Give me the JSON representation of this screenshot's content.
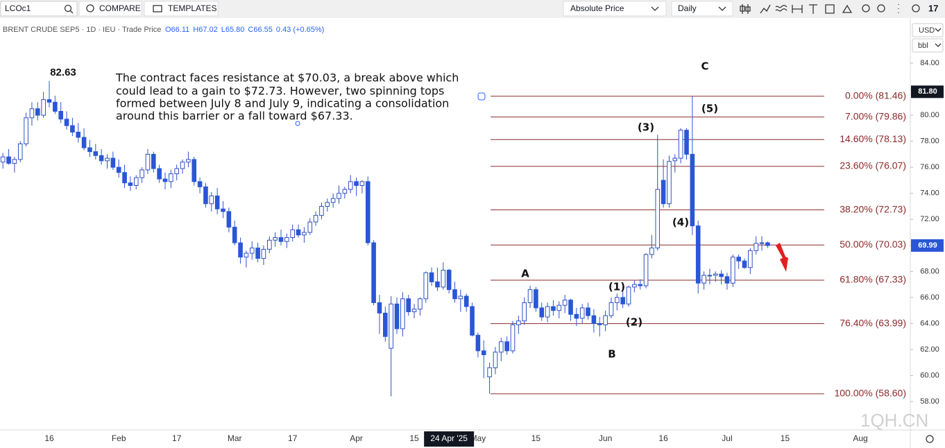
{
  "toolbar": {
    "symbol": "LCOc1",
    "compare": "COMPARE",
    "templates": "TEMPLATES",
    "price_mode": "Absolute Price",
    "interval": "Daily"
  },
  "watermark": "1QH.CN",
  "chart_data": {
    "type": "candlestick",
    "title": "BRENT CRUDE SEP5 · 1D · IEU · Trade Price",
    "ohlc_legend": [
      "O66.11",
      "H67.02",
      "L65.80",
      "C66.55",
      "0.43 (+0.65%)"
    ],
    "currency": "USD",
    "unit": "bbl",
    "up_color": "#2f4fc4",
    "down_color": "#2a56d6",
    "fib_color": "#8b2a2a",
    "ylim": [
      55.82,
      86.08
    ],
    "yticks": [
      {
        "value": 58,
        "label": "58.00"
      },
      {
        "value": 60,
        "label": "60.00"
      },
      {
        "value": 62,
        "label": "62.00"
      },
      {
        "value": 64,
        "label": "64.00"
      },
      {
        "value": 66,
        "label": "66.00"
      },
      {
        "value": 68,
        "label": "68.00"
      },
      {
        "value": 70,
        "label": "70.00"
      },
      {
        "value": 72,
        "label": "72.00"
      },
      {
        "value": 74,
        "label": "74.00"
      },
      {
        "value": 76,
        "label": "76.00"
      },
      {
        "value": 78,
        "label": "78.00"
      },
      {
        "value": 80,
        "label": "80.00"
      },
      {
        "value": 82,
        "label": "82.00"
      },
      {
        "value": 84,
        "label": "84.00"
      }
    ],
    "badges": [
      {
        "value": 81.8,
        "label": "81.80",
        "color": "#131722"
      },
      {
        "value": 69.99,
        "label": "69.99",
        "color": "#2a56d6"
      }
    ],
    "categories": [
      null,
      null,
      null,
      null,
      null,
      null,
      null,
      null,
      "16",
      null,
      null,
      null,
      null,
      null,
      null,
      null,
      null,
      null,
      null,
      null,
      "Feb",
      null,
      null,
      null,
      null,
      null,
      null,
      null,
      null,
      null,
      "17",
      null,
      null,
      null,
      null,
      null,
      null,
      null,
      null,
      null,
      "Mar",
      null,
      null,
      null,
      null,
      null,
      null,
      null,
      null,
      null,
      "17",
      null,
      null,
      null,
      null,
      null,
      null,
      null,
      null,
      null,
      null,
      "Apr",
      null,
      null,
      null,
      null,
      null,
      null,
      null,
      null,
      null,
      "15",
      null,
      null,
      null,
      null,
      null,
      "24 Apr '25",
      null,
      null,
      null,
      null,
      "May",
      null,
      null,
      null,
      null,
      null,
      null,
      null,
      null,
      null,
      "15",
      null,
      null,
      null,
      null,
      null,
      null,
      null,
      null,
      null,
      null,
      null,
      "Jun",
      null,
      null,
      null,
      null,
      null,
      null,
      null,
      null,
      null,
      "16",
      null,
      null,
      null,
      null,
      null,
      null,
      null,
      null,
      null,
      null,
      "Jul",
      null,
      null,
      null,
      null,
      null,
      null,
      null,
      null,
      null,
      "15",
      null,
      null,
      null,
      null,
      null,
      null,
      null,
      null,
      null,
      null,
      null,
      null,
      "Aug",
      null,
      null,
      null,
      null,
      null,
      null,
      null,
      null
    ],
    "open": [
      76.4,
      76.8,
      76.3,
      76.6,
      77.8,
      79.8,
      80.5,
      80.0,
      81.2,
      81.0,
      80.3,
      79.7,
      79.2,
      78.7,
      78.3,
      77.5,
      77.2,
      76.9,
      76.5,
      76.7,
      76.0,
      75.6,
      74.8,
      74.6,
      75.2,
      75.8,
      77.0,
      75.9,
      75.1,
      74.9,
      75.5,
      75.9,
      76.4,
      76.6,
      74.9,
      74.5,
      73.2,
      73.8,
      72.8,
      72.6,
      71.4,
      70.2,
      69.1,
      69.4,
      69.8,
      69.0,
      69.7,
      70.4,
      70.6,
      70.3,
      70.6,
      71.2,
      70.8,
      71.0,
      71.8,
      72.3,
      73.0,
      73.3,
      73.6,
      74.0,
      74.3,
      74.9,
      74.6,
      74.9,
      70.2,
      65.6,
      64.8,
      62.1,
      65.5,
      63.6,
      65.9,
      64.9,
      65.1,
      65.9,
      67.9,
      67.2,
      66.8,
      68.1,
      66.6,
      65.9,
      66.1,
      65.3,
      63.1,
      61.9,
      59.9,
      60.6,
      61.8,
      62.6,
      61.9,
      63.9,
      64.2,
      65.6,
      66.6,
      65.2,
      64.5,
      65.3,
      65.0,
      65.4,
      65.8,
      64.7,
      64.4,
      65.2,
      64.6,
      64.0,
      63.9,
      64.6,
      65.6,
      66.0,
      65.5,
      66.8,
      67.0,
      66.9,
      69.3,
      69.8,
      75.0,
      73.2,
      76.5,
      76.7,
      78.85,
      77.0,
      71.5,
      67.1,
      67.7,
      67.7,
      67.8,
      67.6,
      67.1,
      69.1,
      68.8,
      68.3,
      69.6,
      70.15,
      70.2,
      null,
      null,
      null,
      null,
      null,
      null,
      null,
      null,
      null,
      null,
      null,
      null,
      null,
      null,
      null,
      null,
      null,
      null,
      null,
      null,
      null,
      null,
      null,
      null
    ],
    "high": [
      77.1,
      77.4,
      76.8,
      78.0,
      80.2,
      81.0,
      81.0,
      81.8,
      82.63,
      81.5,
      81.0,
      80.3,
      79.8,
      79.4,
      79.0,
      78.1,
      77.8,
      77.4,
      77.0,
      77.2,
      76.6,
      76.2,
      75.3,
      75.4,
      76.0,
      77.4,
      77.2,
      76.2,
      75.6,
      75.8,
      76.2,
      76.6,
      77.2,
      76.8,
      75.2,
      74.8,
      74.1,
      74.4,
      73.4,
      72.9,
      71.9,
      70.6,
      69.6,
      70.3,
      70.2,
      70.0,
      70.7,
      71.0,
      71.2,
      70.9,
      71.6,
      71.6,
      71.4,
      72.1,
      72.6,
      73.3,
      73.6,
      74.0,
      74.6,
      74.5,
      75.4,
      75.2,
      75.0,
      75.3,
      70.4,
      66.2,
      65.3,
      66.1,
      66.0,
      66.4,
      66.2,
      65.5,
      66.0,
      68.0,
      68.3,
      68.3,
      68.7,
      68.2,
      67.2,
      66.6,
      66.3,
      65.6,
      63.3,
      62.7,
      61.0,
      62.2,
      62.9,
      63.0,
      64.2,
      64.6,
      66.0,
      66.9,
      66.8,
      65.6,
      65.6,
      65.8,
      65.7,
      66.2,
      65.9,
      65.2,
      65.5,
      65.6,
      65.1,
      64.5,
      65.0,
      66.0,
      66.3,
      66.8,
      66.9,
      67.3,
      67.4,
      69.4,
      70.8,
      78.5,
      76.6,
      76.9,
      77.0,
      79.0,
      79.0,
      81.46,
      71.9,
      68.0,
      68.2,
      68.0,
      68.1,
      67.9,
      69.3,
      69.3,
      69.0,
      69.8,
      70.7,
      70.7,
      70.3,
      null,
      null,
      null,
      null,
      null,
      null,
      null,
      null,
      null,
      null,
      null,
      null,
      null,
      null,
      null,
      null,
      null,
      null,
      null,
      null,
      null,
      null,
      null,
      null
    ],
    "low": [
      75.9,
      76.2,
      75.6,
      76.4,
      77.6,
      79.2,
      79.6,
      79.8,
      80.6,
      80.1,
      79.4,
      78.9,
      78.4,
      77.9,
      77.3,
      76.8,
      76.6,
      76.2,
      75.9,
      75.8,
      75.2,
      74.4,
      74.2,
      74.3,
      74.8,
      75.5,
      75.6,
      74.8,
      74.3,
      74.4,
      75.0,
      75.5,
      76.0,
      74.6,
      74.0,
      72.9,
      72.6,
      72.4,
      72.1,
      71.0,
      70.0,
      68.6,
      68.3,
      68.9,
      68.7,
      68.5,
      69.4,
      69.9,
      70.0,
      69.8,
      70.3,
      70.6,
      70.2,
      70.8,
      71.5,
      72.0,
      72.6,
      72.9,
      73.2,
      73.6,
      74.0,
      73.8,
      74.0,
      70.0,
      65.4,
      63.2,
      62.6,
      58.4,
      63.2,
      63.0,
      64.6,
      64.4,
      64.6,
      65.6,
      66.9,
      66.5,
      66.6,
      66.3,
      65.6,
      64.9,
      64.9,
      63.0,
      61.4,
      59.8,
      58.6,
      60.1,
      61.1,
      61.6,
      61.7,
      63.2,
      63.9,
      65.2,
      64.9,
      64.2,
      64.1,
      64.6,
      64.4,
      64.8,
      64.2,
      63.8,
      64.0,
      64.3,
      63.3,
      63.0,
      63.4,
      64.4,
      65.0,
      65.2,
      65.3,
      66.4,
      66.6,
      66.7,
      69.0,
      69.6,
      72.9,
      72.9,
      75.6,
      76.3,
      76.6,
      70.8,
      66.3,
      66.6,
      67.0,
      67.2,
      67.0,
      66.6,
      66.8,
      68.2,
      68.2,
      67.8,
      69.3,
      69.6,
      69.8,
      null,
      null,
      null,
      null,
      null,
      null,
      null,
      null,
      null,
      null,
      null,
      null,
      null,
      null,
      null,
      null,
      null,
      null,
      null,
      null,
      null,
      null,
      null,
      null
    ],
    "close": [
      76.8,
      76.3,
      76.6,
      77.8,
      79.8,
      80.5,
      80.0,
      81.2,
      81.0,
      80.3,
      79.7,
      79.2,
      78.7,
      78.3,
      77.5,
      77.2,
      76.9,
      76.5,
      76.7,
      76.0,
      75.6,
      74.8,
      74.6,
      75.2,
      75.8,
      77.0,
      75.9,
      75.1,
      74.9,
      75.5,
      75.9,
      76.4,
      76.6,
      74.9,
      74.5,
      73.2,
      73.8,
      72.8,
      72.6,
      71.4,
      70.2,
      69.1,
      69.4,
      69.8,
      69.0,
      69.7,
      70.4,
      70.6,
      70.3,
      70.6,
      71.2,
      70.8,
      71.0,
      71.8,
      72.3,
      73.0,
      73.3,
      73.6,
      74.0,
      74.3,
      74.9,
      74.6,
      74.9,
      70.2,
      65.6,
      64.8,
      63.0,
      65.5,
      63.6,
      65.9,
      64.9,
      65.1,
      65.9,
      67.9,
      67.2,
      66.8,
      68.1,
      66.6,
      65.9,
      66.1,
      65.3,
      63.1,
      61.9,
      61.6,
      60.6,
      61.8,
      62.6,
      61.9,
      63.9,
      64.2,
      65.6,
      66.6,
      65.2,
      64.5,
      65.3,
      65.0,
      65.4,
      65.8,
      64.7,
      64.4,
      65.2,
      64.6,
      64.0,
      63.9,
      64.6,
      65.6,
      66.0,
      65.5,
      66.8,
      67.0,
      66.9,
      69.3,
      69.8,
      74.3,
      73.2,
      76.45,
      76.7,
      78.85,
      77.0,
      71.5,
      67.1,
      67.7,
      67.7,
      67.8,
      67.6,
      67.1,
      69.1,
      68.8,
      68.3,
      69.6,
      70.15,
      70.2,
      69.99,
      null,
      null,
      null,
      null,
      null,
      null,
      null,
      null,
      null,
      null,
      null,
      null,
      null,
      null,
      null,
      null,
      null,
      null,
      null,
      null,
      null,
      null,
      null,
      null
    ],
    "fib_levels": [
      {
        "value": 81.46,
        "label": "0.00% (81.46)"
      },
      {
        "value": 79.86,
        "label": "7.00% (79.86)"
      },
      {
        "value": 78.13,
        "label": "14.60% (78.13)"
      },
      {
        "value": 76.07,
        "label": "23.60% (76.07)"
      },
      {
        "value": 72.73,
        "label": "38.20% (72.73)"
      },
      {
        "value": 70.03,
        "label": "50.00% (70.03)"
      },
      {
        "value": 67.33,
        "label": "61.80% (67.33)"
      },
      {
        "value": 63.99,
        "label": "76.40% (63.99)"
      },
      {
        "value": 58.6,
        "label": "100.00% (58.60)"
      }
    ],
    "wave_labels": [
      "A",
      "B",
      "C",
      "(1)",
      "(2)",
      "(3)",
      "(4)",
      "(5)"
    ],
    "high_label": "82.63",
    "annotation": [
      "The contract faces resistance at $70.03, a break above which",
      "could lead to a gain to $72.73. However, two spinning tops",
      "formed between July 8 and July 9,  indicating a consolidation",
      "around this barrier or a fall toward $67.33."
    ]
  }
}
